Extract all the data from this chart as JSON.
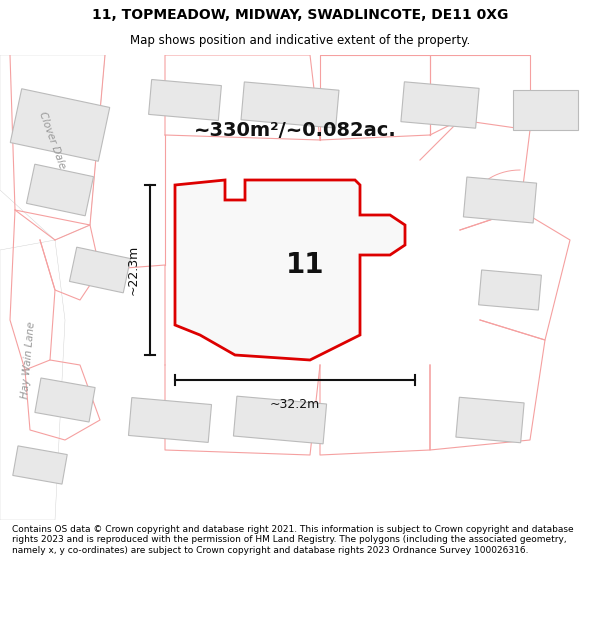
{
  "title_line1": "11, TOPMEADOW, MIDWAY, SWADLINCOTE, DE11 0XG",
  "title_line2": "Map shows position and indicative extent of the property.",
  "area_text": "~330m²/~0.082ac.",
  "label_number": "11",
  "dim_vertical": "~22.3m",
  "dim_horizontal": "~32.2m",
  "footer_text": "Contains OS data © Crown copyright and database right 2021. This information is subject to Crown copyright and database rights 2023 and is reproduced with the permission of HM Land Registry. The polygons (including the associated geometry, namely x, y co-ordinates) are subject to Crown copyright and database rights 2023 Ordnance Survey 100026316.",
  "bg_color": "#ffffff",
  "map_bg": "#ffffff",
  "road_color": "#ffffff",
  "plot_outline_color": "#dd0000",
  "plot_fill_color": "#f0f0f0",
  "building_fill": "#e8e8e8",
  "building_stroke": "#bbbbbb",
  "parcel_stroke": "#f5a0a0",
  "parcel_fill": "#fdf5f5",
  "street_label_color": "#999999",
  "dim_color": "#111111",
  "annotation_color": "#111111",
  "title_fontsize": 10,
  "subtitle_fontsize": 8.5,
  "area_fontsize": 14,
  "number_fontsize": 20,
  "footer_fontsize": 6.5
}
